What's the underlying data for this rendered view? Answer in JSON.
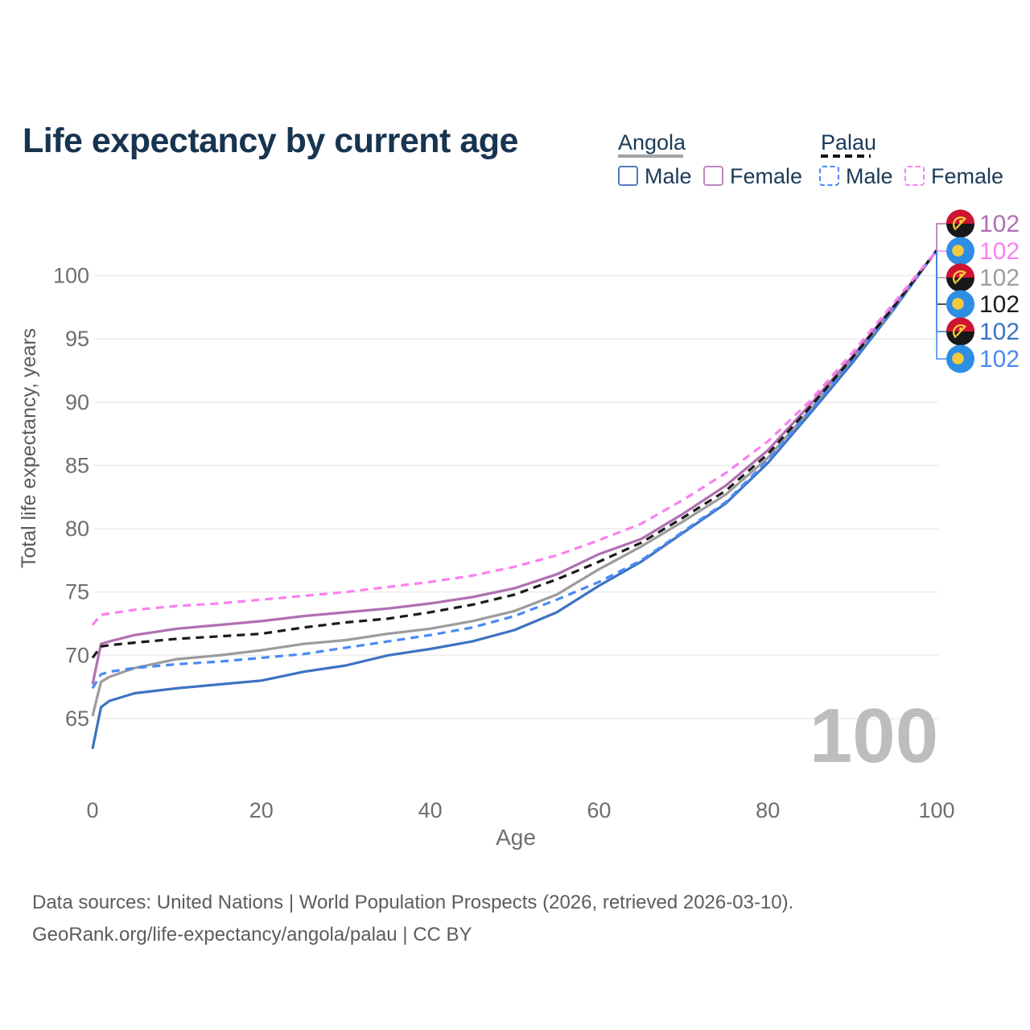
{
  "title": "Life expectancy by current age",
  "watermark": "100",
  "legend": {
    "groups": [
      {
        "country": "Angola",
        "line_style": "solid",
        "underline_color": "#a3a3a3",
        "items": [
          {
            "label": "Male",
            "color": "#4f7cbd",
            "dashed": false
          },
          {
            "label": "Female",
            "color": "#bf84c1",
            "dashed": false
          }
        ]
      },
      {
        "country": "Palau",
        "line_style": "dashed",
        "underline_color": "#141414",
        "items": [
          {
            "label": "Male",
            "color": "#4b8af2",
            "dashed": true
          },
          {
            "label": "Female",
            "color": "#fb80f1",
            "dashed": true
          }
        ]
      }
    ]
  },
  "source_line1": "Data sources: United Nations | World Population Prospects (2026, retrieved 2026-03-10).",
  "source_line2": "GeoRank.org/life-expectancy/angola/palau | CC BY",
  "chart_data": {
    "type": "line",
    "title": "Life expectancy by current age",
    "xlabel": "Age",
    "ylabel": "Total life expectancy, years",
    "xlim": [
      0,
      100
    ],
    "ylim": [
      62,
      103
    ],
    "xticks": [
      0,
      20,
      40,
      60,
      80,
      100
    ],
    "yticks": [
      65,
      70,
      75,
      80,
      85,
      90,
      95,
      100
    ],
    "grid": "horizontal-only",
    "grid_color": "#ececec",
    "tick_color": "#6e6e6e",
    "watermark_color": "#bdbdbd",
    "x": [
      0,
      1,
      2,
      5,
      10,
      15,
      20,
      25,
      30,
      35,
      40,
      45,
      50,
      55,
      60,
      65,
      70,
      75,
      80,
      85,
      90,
      95,
      100
    ],
    "series": [
      {
        "name": "Angola Male",
        "country": "Angola",
        "flag": "angola",
        "color": "#3d72c2",
        "dashed": false,
        "label_slot": 4,
        "end_label": "102",
        "values": [
          62.6,
          65.9,
          66.4,
          67.0,
          67.4,
          67.7,
          68.0,
          68.7,
          69.2,
          70.0,
          70.5,
          71.1,
          72.0,
          73.4,
          75.5,
          77.4,
          79.7,
          82.0,
          85.2,
          89.1,
          93.1,
          97.4,
          102
        ]
      },
      {
        "name": "Angola",
        "country": "Angola",
        "flag": "angola",
        "color": "#9c9c9c",
        "dashed": false,
        "label_slot": 2,
        "end_label": "102",
        "values": [
          65.2,
          67.9,
          68.3,
          69.0,
          69.7,
          70.0,
          70.4,
          70.9,
          71.2,
          71.7,
          72.1,
          72.7,
          73.5,
          74.8,
          76.8,
          78.6,
          80.6,
          82.7,
          85.6,
          89.4,
          93.4,
          97.5,
          102
        ]
      },
      {
        "name": "Angola Female",
        "country": "Angola",
        "flag": "angola",
        "color": "#b06fb2",
        "dashed": false,
        "label_slot": 0,
        "end_label": "102",
        "values": [
          67.7,
          70.9,
          71.1,
          71.6,
          72.1,
          72.4,
          72.7,
          73.1,
          73.4,
          73.7,
          74.1,
          74.6,
          75.3,
          76.4,
          78.0,
          79.2,
          81.2,
          83.4,
          86.2,
          89.8,
          93.6,
          97.7,
          102
        ]
      },
      {
        "name": "Palau Male",
        "country": "Palau",
        "flag": "palau",
        "color": "#4b8af2",
        "dashed": true,
        "label_slot": 5,
        "end_label": "102",
        "values": [
          67.4,
          68.5,
          68.7,
          69.0,
          69.3,
          69.5,
          69.8,
          70.1,
          70.6,
          71.1,
          71.6,
          72.2,
          73.1,
          74.4,
          75.8,
          77.5,
          79.8,
          82.1,
          85.4,
          89.3,
          93.3,
          97.5,
          102
        ]
      },
      {
        "name": "Palau",
        "country": "Palau",
        "flag": "palau",
        "color": "#1a1a1a",
        "dashed": true,
        "label_slot": 3,
        "end_label": "102",
        "values": [
          69.8,
          70.7,
          70.8,
          71.0,
          71.3,
          71.5,
          71.7,
          72.2,
          72.6,
          72.9,
          73.4,
          74.0,
          74.8,
          76.0,
          77.4,
          78.9,
          80.9,
          83.0,
          85.9,
          89.6,
          93.5,
          97.6,
          102
        ]
      },
      {
        "name": "Palau Female",
        "country": "Palau",
        "flag": "palau",
        "color": "#fb80f1",
        "dashed": true,
        "label_slot": 1,
        "end_label": "102",
        "values": [
          72.4,
          73.2,
          73.3,
          73.6,
          73.9,
          74.1,
          74.4,
          74.7,
          75.0,
          75.4,
          75.8,
          76.3,
          77.0,
          77.9,
          79.1,
          80.4,
          82.3,
          84.4,
          86.9,
          90.1,
          93.9,
          97.9,
          102
        ]
      }
    ],
    "flag_colors": {
      "angola_red": "#cf1332",
      "angola_black": "#181818",
      "angola_yellow": "#f7cb37",
      "palau_blue": "#2e8de4",
      "palau_yellow": "#f4c93e"
    }
  }
}
